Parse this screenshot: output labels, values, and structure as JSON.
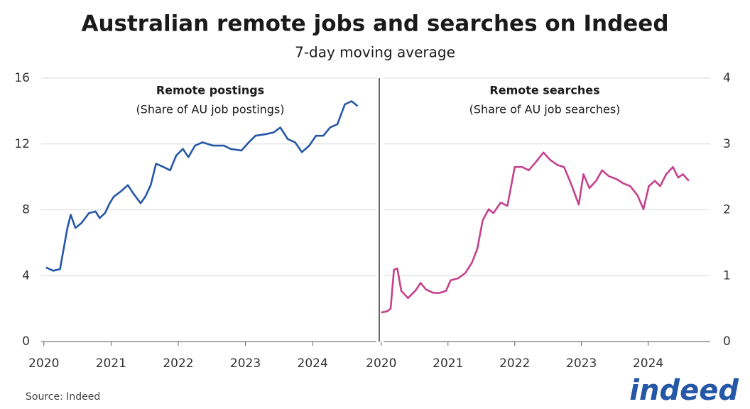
{
  "title": "Australian remote jobs and searches on Indeed",
  "subtitle": "7-day moving average",
  "source": "Source: Indeed",
  "logo": "indeed",
  "chart_data": [
    {
      "type": "line",
      "title": "Remote postings",
      "subtitle": "(Share of AU job postings)",
      "y_axis_side": "left",
      "grid": true,
      "xlim": [
        2019.96,
        2024.95
      ],
      "xticks": [
        2020,
        2021,
        2022,
        2023,
        2024
      ],
      "ylim": [
        0,
        16
      ],
      "yticks": [
        0,
        4,
        8,
        12,
        16
      ],
      "x": [
        2020.03,
        2020.14,
        2020.24,
        2020.35,
        2020.4,
        2020.47,
        2020.56,
        2020.67,
        2020.77,
        2020.83,
        2020.91,
        2020.98,
        2021.04,
        2021.14,
        2021.25,
        2021.33,
        2021.44,
        2021.51,
        2021.59,
        2021.67,
        2021.78,
        2021.88,
        2021.97,
        2022.07,
        2022.15,
        2022.25,
        2022.36,
        2022.52,
        2022.68,
        2022.78,
        2022.94,
        2023.05,
        2023.15,
        2023.31,
        2023.42,
        2023.52,
        2023.63,
        2023.74,
        2023.84,
        2023.95,
        2024.05,
        2024.16,
        2024.26,
        2024.37,
        2024.48,
        2024.58,
        2024.67
      ],
      "series": [
        {
          "name": "Remote postings",
          "color": "#2557a7",
          "values": [
            4.5,
            4.3,
            4.4,
            6.9,
            7.7,
            6.9,
            7.2,
            7.8,
            7.9,
            7.5,
            7.8,
            8.4,
            8.8,
            9.1,
            9.5,
            9.0,
            8.4,
            8.8,
            9.5,
            10.8,
            10.6,
            10.4,
            11.3,
            11.7,
            11.2,
            11.9,
            12.1,
            11.9,
            11.9,
            11.7,
            11.6,
            12.1,
            12.5,
            12.6,
            12.7,
            13.0,
            12.3,
            12.1,
            11.5,
            11.9,
            12.5,
            12.5,
            13.0,
            13.2,
            14.4,
            14.6,
            14.3
          ]
        }
      ]
    },
    {
      "type": "line",
      "title": "Remote searches",
      "subtitle": "(Share of AU job searches)",
      "y_axis_side": "right",
      "grid": true,
      "xlim": [
        2019.97,
        2024.93
      ],
      "xticks": [
        2020,
        2021,
        2022,
        2023,
        2024
      ],
      "ylim": [
        0,
        4
      ],
      "yticks": [
        0,
        1,
        2,
        3,
        4
      ],
      "x": [
        2020.0,
        2020.09,
        2020.14,
        2020.19,
        2020.24,
        2020.3,
        2020.4,
        2020.51,
        2020.59,
        2020.67,
        2020.78,
        2020.88,
        2020.97,
        2021.04,
        2021.15,
        2021.26,
        2021.36,
        2021.44,
        2021.52,
        2021.61,
        2021.68,
        2021.79,
        2021.89,
        2021.95,
        2022.0,
        2022.11,
        2022.21,
        2022.32,
        2022.43,
        2022.53,
        2022.64,
        2022.74,
        2022.85,
        2022.96,
        2023.03,
        2023.12,
        2023.22,
        2023.31,
        2023.41,
        2023.52,
        2023.63,
        2023.73,
        2023.84,
        2023.93,
        2024.01,
        2024.1,
        2024.18,
        2024.27,
        2024.37,
        2024.45,
        2024.52,
        2024.61
      ],
      "series": [
        {
          "name": "Remote searches",
          "color": "#c4418e",
          "values": [
            0.44,
            0.46,
            0.5,
            1.09,
            1.11,
            0.77,
            0.66,
            0.77,
            0.89,
            0.79,
            0.74,
            0.74,
            0.77,
            0.93,
            0.96,
            1.04,
            1.2,
            1.41,
            1.84,
            2.01,
            1.95,
            2.11,
            2.06,
            2.38,
            2.65,
            2.65,
            2.6,
            2.73,
            2.87,
            2.76,
            2.68,
            2.65,
            2.38,
            2.08,
            2.54,
            2.33,
            2.44,
            2.6,
            2.51,
            2.47,
            2.4,
            2.36,
            2.22,
            2.01,
            2.36,
            2.44,
            2.36,
            2.54,
            2.65,
            2.49,
            2.54,
            2.44
          ]
        }
      ]
    }
  ]
}
